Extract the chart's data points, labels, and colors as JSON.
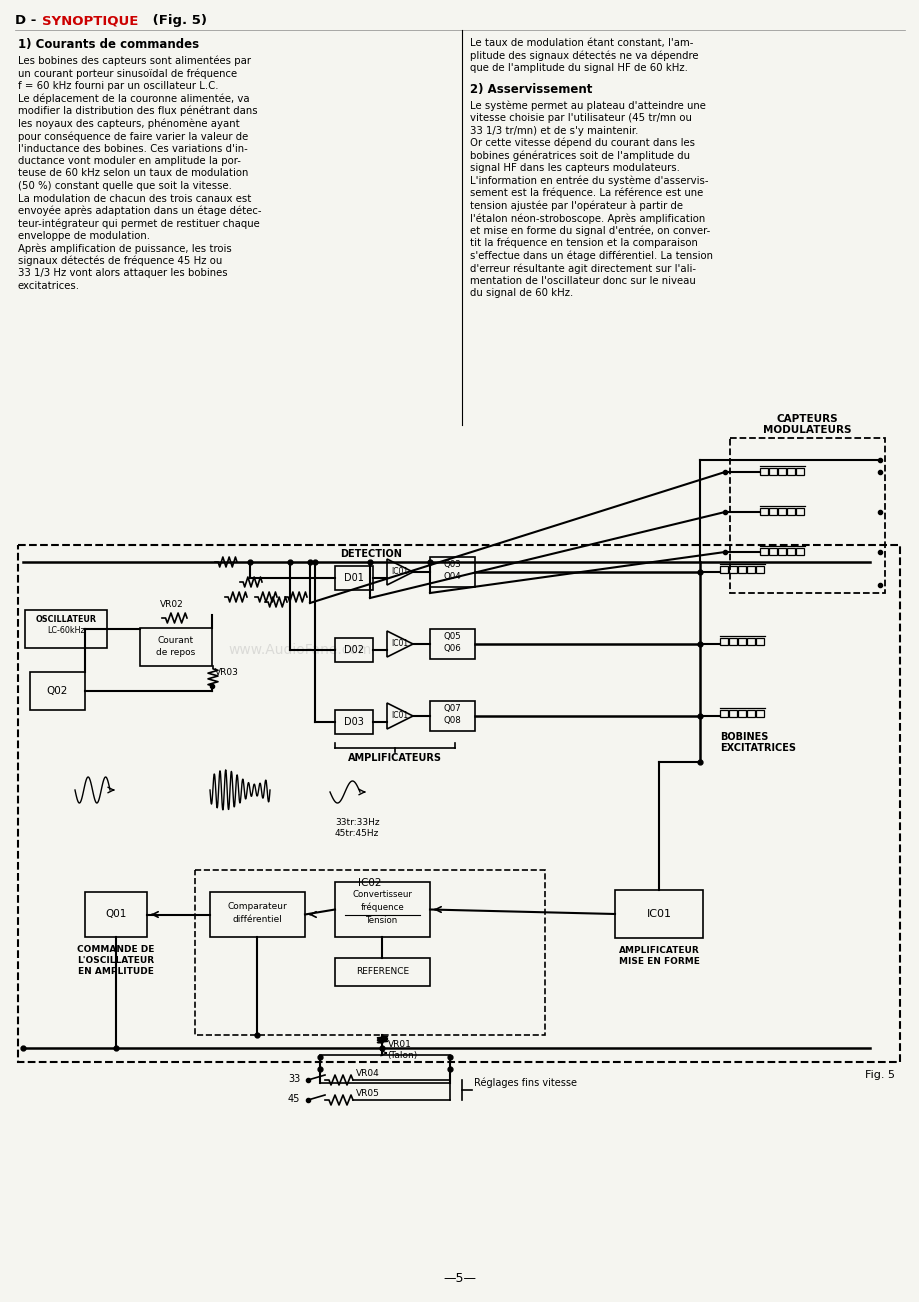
{
  "page_bg": "#f5f5f0",
  "text_color": "#000000",
  "red_color": "#cc0000",
  "section1_title": "1) Courants de commandes",
  "section1_text": [
    "Les bobines des capteurs sont alimentées par",
    "un courant porteur sinusoïdal de fréquence",
    "f = 60 kHz fourni par un oscillateur L.C.",
    "Le déplacement de la couronne alimentée, va",
    "modifier la distribution des flux pénétrant dans",
    "les noyaux des capteurs, phénomène ayant",
    "pour conséquence de faire varier la valeur de",
    "l'inductance des bobines. Ces variations d'in-",
    "ductance vont moduler en amplitude la por-",
    "teuse de 60 kHz selon un taux de modulation",
    "(50 %) constant quelle que soit la vitesse.",
    "La modulation de chacun des trois canaux est",
    "envoyée après adaptation dans un étage détec-",
    "teur-intégrateur qui permet de restituer chaque",
    "enveloppe de modulation.",
    "Après amplification de puissance, les trois",
    "signaux détectés de fréquence 45 Hz ou",
    "33 1/3 Hz vont alors attaquer les bobines",
    "excitatrices."
  ],
  "right_para1": [
    "Le taux de modulation étant constant, l'am-",
    "plitude des signaux détectés ne va dépendre",
    "que de l'amplitude du signal HF de 60 kHz."
  ],
  "section2_title": "2) Asservissement",
  "section2_text": [
    "Le système permet au plateau d'atteindre une",
    "vitesse choisie par l'utilisateur (45 tr/mn ou",
    "33 1/3 tr/mn) et de s'y maintenir.",
    "Or cette vitesse dépend du courant dans les",
    "bobines génératrices soit de l'amplitude du",
    "signal HF dans les capteurs modulateurs.",
    "L'information en entrée du système d'asservis-",
    "sement est la fréquence. La référence est une",
    "tension ajustée par l'opérateur à partir de",
    "l'étalon néon-stroboscope. Après amplification",
    "et mise en forme du signal d'entrée, on conver-",
    "tit la fréquence en tension et la comparaison",
    "s'effectue dans un étage différentiel. La tension",
    "d'erreur résultante agit directement sur l'ali-",
    "mentation de l'oscillateur donc sur le niveau",
    "du signal de 60 kHz."
  ],
  "fig_label": "Fig. 5",
  "page_number": "—5—"
}
